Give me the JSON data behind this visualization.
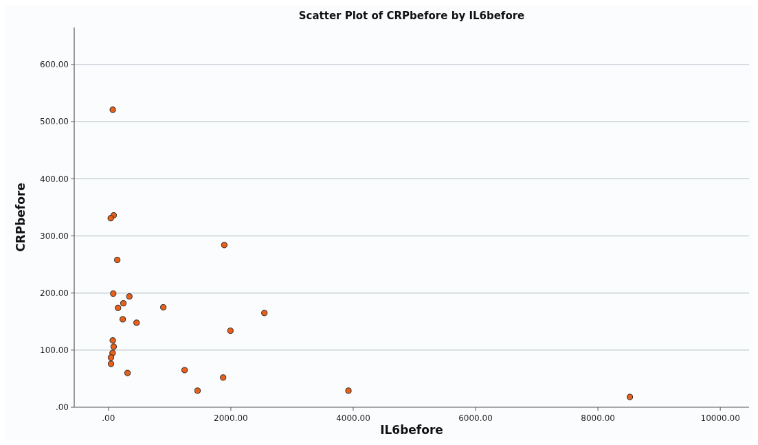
{
  "chart_data": {
    "type": "scatter",
    "title": "Scatter Plot of CRPbefore by IL6before",
    "xlabel": "IL6before",
    "ylabel": "CRPbefore",
    "x": [
      70,
      85,
      37,
      144,
      1893,
      78,
      341,
      244,
      156,
      896,
      2548,
      233,
      459,
      1993,
      70,
      85,
      67,
      41,
      41,
      311,
      1244,
      1874,
      1456,
      3922,
      8522
    ],
    "values": [
      521,
      336,
      331,
      258,
      284,
      199,
      194,
      182,
      174,
      175,
      165,
      154,
      148,
      134,
      117,
      106,
      95,
      87,
      76,
      60,
      65,
      52,
      29,
      29,
      18
    ],
    "color": "#e8601c",
    "marker": "circle",
    "grid": "y",
    "xlim": [
      -560,
      10470
    ],
    "ylim": [
      0,
      665
    ],
    "xticks": [
      {
        "value": 0,
        "label": ".00"
      },
      {
        "value": 2000,
        "label": "2000.00"
      },
      {
        "value": 4000,
        "label": "4000.00"
      },
      {
        "value": 6000,
        "label": "6000.00"
      },
      {
        "value": 8000,
        "label": "8000.00"
      },
      {
        "value": 10000,
        "label": "10000.00"
      }
    ],
    "yticks": [
      {
        "value": 0,
        "label": ".00"
      },
      {
        "value": 100,
        "label": "100.00"
      },
      {
        "value": 200,
        "label": "200.00"
      },
      {
        "value": 300,
        "label": "300.00"
      },
      {
        "value": 400,
        "label": "400.00"
      },
      {
        "value": 500,
        "label": "500.00"
      },
      {
        "value": 600,
        "label": "600.00"
      }
    ]
  }
}
